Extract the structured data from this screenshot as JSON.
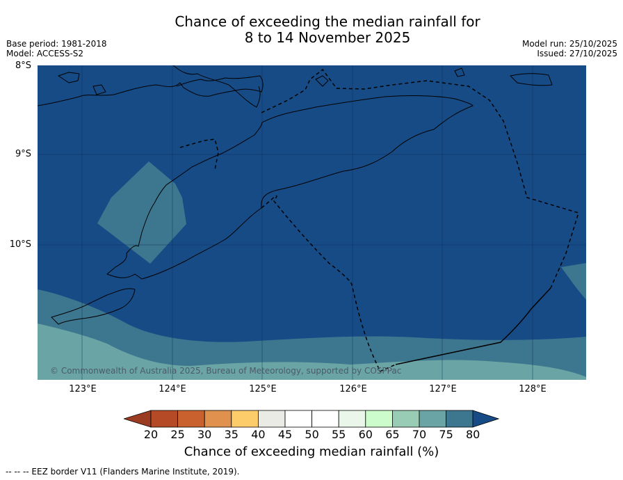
{
  "title": {
    "line1": "Chance of exceeding the median rainfall for",
    "line2": "8 to 14 November 2025"
  },
  "meta": {
    "base_period": "Base period: 1981-2018",
    "model": "Model: ACCESS-S2",
    "model_run": "Model run: 25/10/2025",
    "issued": "Issued: 27/10/2025"
  },
  "map": {
    "lat_labels": [
      "8°S",
      "9°S",
      "10°S"
    ],
    "lon_labels": [
      "123°E",
      "124°E",
      "125°E",
      "126°E",
      "127°E",
      "128°E"
    ],
    "copyright": "© Commonwealth of Australia 2025, Bureau of Meteorology, supported by COSPPac",
    "extent": {
      "lon_min": 122.5,
      "lon_max": 128.6,
      "lat_min": -11.5,
      "lat_max": -8.0
    }
  },
  "colorbar": {
    "ticks": [
      "20",
      "25",
      "30",
      "35",
      "40",
      "45",
      "50",
      "55",
      "60",
      "65",
      "70",
      "75",
      "80"
    ],
    "bin_colors": [
      "#b44a26",
      "#c9612e",
      "#e0914e",
      "#fccb6a",
      "#ebebe6",
      "#ffffff",
      "#ffffff",
      "#e9f6e9",
      "#ccfccc",
      "#99ccb5",
      "#6aa4a4",
      "#3d768f"
    ],
    "under_color": "#9b3b22",
    "over_color": "#174b86",
    "label": "Chance of exceeding median rainfall (%)"
  },
  "footer": {
    "eez_note": "--  --  -- EEZ border V11 (Flanders Marine Institute, 2019)."
  }
}
